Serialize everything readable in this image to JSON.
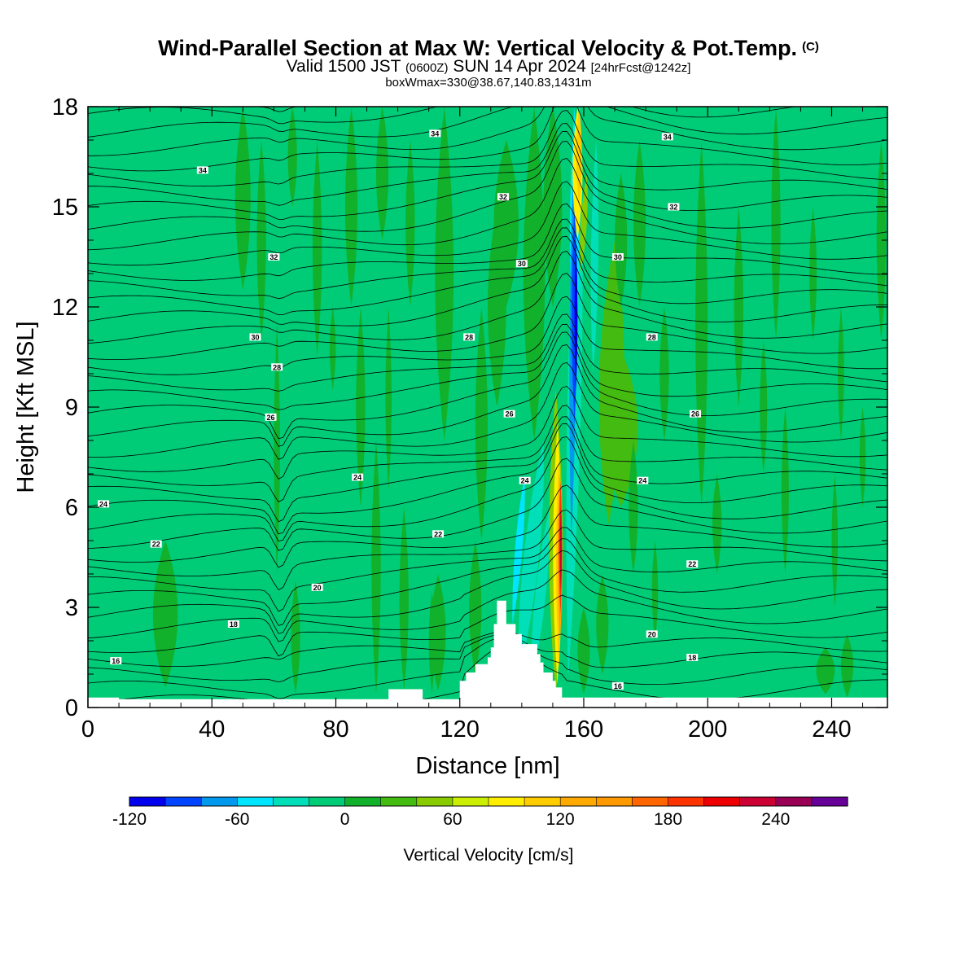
{
  "header": {
    "title": "Wind-Parallel Section at Max W: Vertical Velocity & Pot.Temp.",
    "copyright": "(C)",
    "valid_prefix": "Valid 1500 JST",
    "valid_utc": "(0600Z)",
    "valid_date": "SUN 14 Apr 2024",
    "forecast": "[24hrFcst@1242z]",
    "box_info": "boxWmax=330@38.67,140.83,1431m"
  },
  "chart_data": {
    "type": "heatmap",
    "xlabel": "Distance [nm]",
    "ylabel": "Height [Kft MSL]",
    "xlim": [
      0,
      258
    ],
    "ylim": [
      0,
      18
    ],
    "x_ticks": [
      "0",
      "40",
      "80",
      "120",
      "160",
      "200",
      "240"
    ],
    "x_tick_values": [
      0,
      40,
      80,
      120,
      160,
      200,
      240
    ],
    "y_ticks": [
      "0",
      "3",
      "6",
      "9",
      "12",
      "15",
      "18"
    ],
    "y_tick_values": [
      0,
      3,
      6,
      9,
      12,
      15,
      18
    ],
    "colorbar": {
      "label": "Vertical Velocity [cm/s]",
      "tick_labels": [
        "-120",
        "-60",
        "0",
        "60",
        "120",
        "180",
        "240"
      ],
      "tick_values": [
        -120,
        -60,
        0,
        60,
        120,
        180,
        240
      ],
      "min": -120,
      "step": 20,
      "colors": [
        "#0000ee",
        "#0044ff",
        "#0099ee",
        "#00e5ff",
        "#00dfb8",
        "#00cc77",
        "#12b12c",
        "#44bb11",
        "#88cc00",
        "#ccee00",
        "#ffee00",
        "#ffcc00",
        "#ffaa00",
        "#ff9900",
        "#ff6600",
        "#ff3300",
        "#ee0000",
        "#cc0033",
        "#990055",
        "#660099"
      ]
    },
    "background_color": "#00cc77",
    "terrain": [
      [
        0,
        0.3
      ],
      [
        10,
        0.3
      ],
      [
        10,
        0.25
      ],
      [
        97,
        0.25
      ],
      [
        97,
        0.55
      ],
      [
        108,
        0.55
      ],
      [
        108,
        0.25
      ],
      [
        120,
        0.25
      ],
      [
        120,
        0.8
      ],
      [
        122,
        0.8
      ],
      [
        122,
        1.05
      ],
      [
        125,
        1.05
      ],
      [
        125,
        1.3
      ],
      [
        129,
        1.3
      ],
      [
        129,
        1.5
      ],
      [
        130,
        1.5
      ],
      [
        130,
        1.8
      ],
      [
        131,
        1.8
      ],
      [
        131,
        2.5
      ],
      [
        132,
        2.5
      ],
      [
        132,
        3.2
      ],
      [
        135,
        3.2
      ],
      [
        135,
        2.5
      ],
      [
        138,
        2.5
      ],
      [
        138,
        2.2
      ],
      [
        140,
        2.2
      ],
      [
        140,
        1.9
      ],
      [
        145,
        1.9
      ],
      [
        145,
        1.6
      ],
      [
        146,
        1.6
      ],
      [
        146,
        1.35
      ],
      [
        147,
        1.35
      ],
      [
        147,
        1.05
      ],
      [
        150,
        1.05
      ],
      [
        150,
        0.8
      ],
      [
        151,
        0.8
      ],
      [
        151,
        0.6
      ],
      [
        153,
        0.6
      ],
      [
        153,
        0.3
      ],
      [
        258,
        0.3
      ]
    ],
    "theta_labels": [
      {
        "text": "34",
        "x": 37,
        "y": 16.1
      },
      {
        "text": "34",
        "x": 112,
        "y": 17.2
      },
      {
        "text": "34",
        "x": 187,
        "y": 17.1
      },
      {
        "text": "32",
        "x": 60,
        "y": 13.5
      },
      {
        "text": "32",
        "x": 134,
        "y": 15.3
      },
      {
        "text": "32",
        "x": 189,
        "y": 15.0
      },
      {
        "text": "30",
        "x": 54,
        "y": 11.1
      },
      {
        "text": "30",
        "x": 140,
        "y": 13.3
      },
      {
        "text": "30",
        "x": 171,
        "y": 13.5
      },
      {
        "text": "28",
        "x": 61,
        "y": 10.2
      },
      {
        "text": "28",
        "x": 123,
        "y": 11.1
      },
      {
        "text": "28",
        "x": 182,
        "y": 11.1
      },
      {
        "text": "26",
        "x": 59,
        "y": 8.7
      },
      {
        "text": "26",
        "x": 136,
        "y": 8.8
      },
      {
        "text": "26",
        "x": 196,
        "y": 8.8
      },
      {
        "text": "24",
        "x": 5,
        "y": 6.1
      },
      {
        "text": "24",
        "x": 87,
        "y": 6.9
      },
      {
        "text": "24",
        "x": 141,
        "y": 6.8
      },
      {
        "text": "24",
        "x": 179,
        "y": 6.8
      },
      {
        "text": "22",
        "x": 22,
        "y": 4.9
      },
      {
        "text": "22",
        "x": 113,
        "y": 5.2
      },
      {
        "text": "22",
        "x": 195,
        "y": 4.3
      },
      {
        "text": "20",
        "x": 74,
        "y": 3.6
      },
      {
        "text": "20",
        "x": 182,
        "y": 2.2
      },
      {
        "text": "18",
        "x": 47,
        "y": 2.5
      },
      {
        "text": "18",
        "x": 195,
        "y": 1.5
      },
      {
        "text": "16",
        "x": 9,
        "y": 1.4
      },
      {
        "text": "16",
        "x": 171,
        "y": 0.65
      }
    ]
  }
}
